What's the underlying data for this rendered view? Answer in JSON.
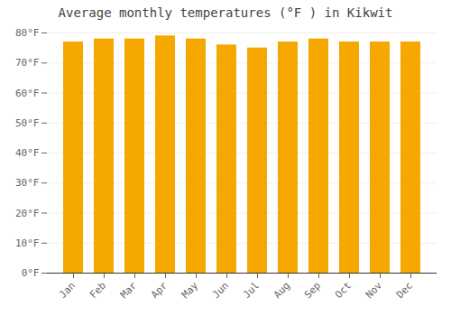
{
  "chart_data": {
    "type": "bar",
    "title": "Average monthly temperatures (°F ) in Kikwit",
    "categories": [
      "Jan",
      "Feb",
      "Mar",
      "Apr",
      "May",
      "Jun",
      "Jul",
      "Aug",
      "Sep",
      "Oct",
      "Nov",
      "Dec"
    ],
    "values": [
      77,
      78,
      78,
      79,
      78,
      76,
      75,
      77,
      78,
      77,
      77,
      77
    ],
    "color": "#F5A800",
    "ylim": [
      0,
      80
    ],
    "yticks": [
      {
        "value": 0,
        "label": "0°F"
      },
      {
        "value": 10,
        "label": "10°F"
      },
      {
        "value": 20,
        "label": "20°F"
      },
      {
        "value": 30,
        "label": "30°F"
      },
      {
        "value": 40,
        "label": "40°F"
      },
      {
        "value": 50,
        "label": "50°F"
      },
      {
        "value": 60,
        "label": "60°F"
      },
      {
        "value": 70,
        "label": "70°F"
      },
      {
        "value": 80,
        "label": "80°F"
      }
    ],
    "grid": true
  }
}
